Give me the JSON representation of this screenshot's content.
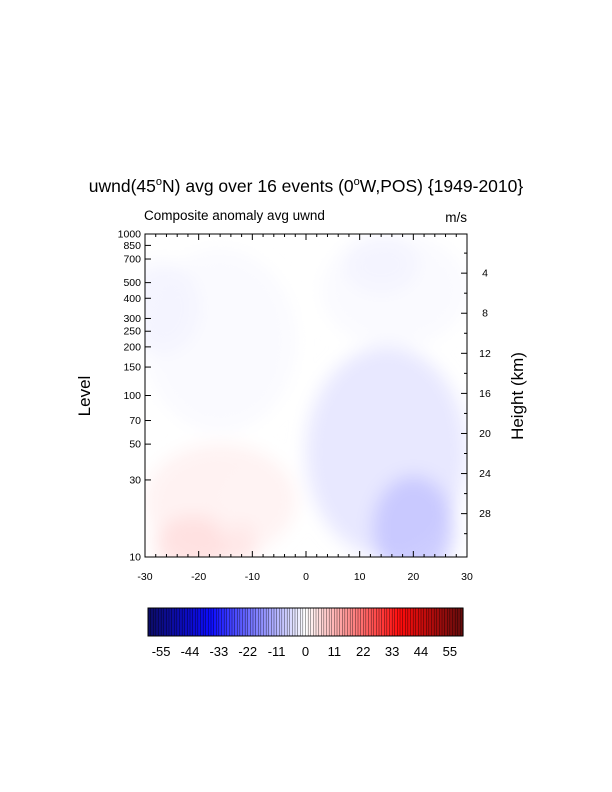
{
  "title": {
    "pre": "uwnd(45",
    "deg1": "o",
    "mid": "N) avg over 16 events (0",
    "deg2": "o",
    "post": "W,POS) {1949-2010}"
  },
  "colors": {
    "positive": "#c01818",
    "negative": "#1818c0"
  },
  "chart_data": {
    "type": "heatmap",
    "subtitle_left": "Composite anomaly avg uwnd",
    "subtitle_right": "m/s",
    "xlabel": "",
    "ylabel": "Level",
    "ylabel_right": "Height (km)",
    "xlim": [
      -30,
      30
    ],
    "ylim": [
      1000,
      10
    ],
    "yscale": "log",
    "x_ticks": [
      -30,
      -20,
      -10,
      0,
      10,
      20,
      30
    ],
    "y_ticks": [
      1000,
      850,
      700,
      500,
      400,
      300,
      250,
      200,
      150,
      100,
      70,
      50,
      30,
      10
    ],
    "height_ticks_km": [
      4,
      8,
      12,
      16,
      20,
      24,
      28
    ],
    "colorbar": {
      "colors": "blue-white-red",
      "range": [
        -60,
        60
      ],
      "tick_labels": [
        -55,
        -44,
        -33,
        -22,
        -11,
        0,
        11,
        22,
        33,
        44,
        55
      ]
    },
    "features": [
      {
        "sign": "positive",
        "x_range": [
          -30,
          -2
        ],
        "level_range": [
          10,
          50
        ],
        "peak_x": -21,
        "peak_level": 12,
        "approx_value": 5
      },
      {
        "sign": "positive",
        "x_range": [
          -16,
          -6
        ],
        "level_range": [
          10,
          35
        ],
        "peak_x": -12,
        "peak_level": 12,
        "approx_value": 4
      },
      {
        "sign": "negative",
        "x_range": [
          0,
          30
        ],
        "level_range": [
          10,
          200
        ],
        "peak_x": 20,
        "peak_level": 15,
        "approx_value": -9
      },
      {
        "sign": "negative",
        "x_range": [
          -30,
          -2
        ],
        "level_range": [
          60,
          800
        ],
        "peak_x": -27,
        "peak_level": 350,
        "approx_value": -2
      },
      {
        "sign": "negative",
        "x_range": [
          3,
          30
        ],
        "level_range": [
          200,
          1000
        ],
        "peak_x": 14,
        "peak_level": 650,
        "approx_value": -2
      }
    ]
  }
}
